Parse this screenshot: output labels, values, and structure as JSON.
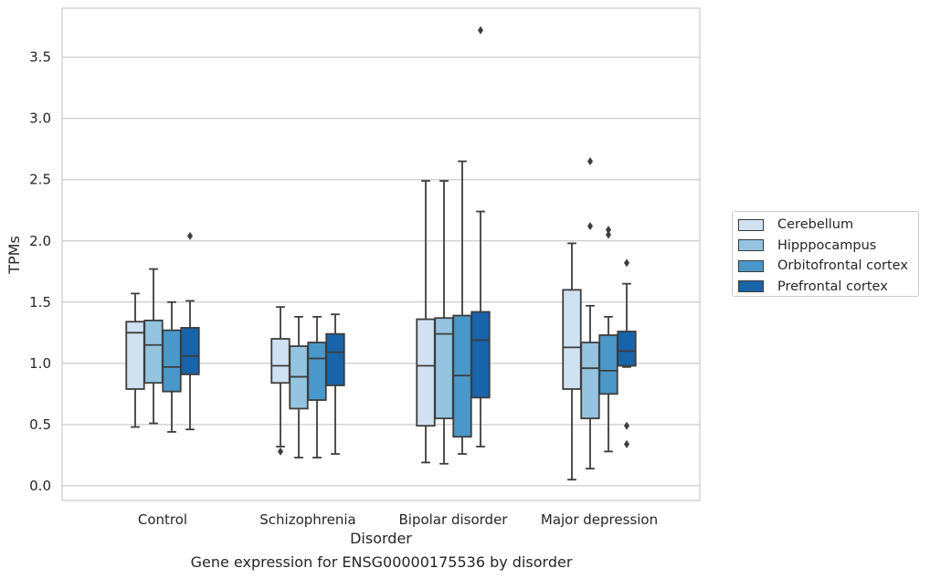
{
  "chart_data": {
    "type": "boxplot",
    "caption": "Gene expression for ENSG00000175536 by disorder",
    "xlabel": "Disorder",
    "ylabel": "TPMs",
    "ylim": [
      -0.12,
      3.9
    ],
    "yticks": [
      "0.0",
      "0.5",
      "1.0",
      "1.5",
      "2.0",
      "2.5",
      "3.0",
      "3.5"
    ],
    "grid": true,
    "legend_position": "right",
    "categories": [
      "Control",
      "Schizophrenia",
      "Bipolar disorder",
      "Major depression"
    ],
    "series": [
      {
        "name": "Cerebellum",
        "color": "#d0e1f2",
        "boxes": [
          {
            "whislo": 0.48,
            "q1": 0.79,
            "med": 1.25,
            "q3": 1.34,
            "whishi": 1.57,
            "fliers": []
          },
          {
            "whislo": 0.32,
            "q1": 0.84,
            "med": 0.98,
            "q3": 1.2,
            "whishi": 1.46,
            "fliers": [
              0.28
            ]
          },
          {
            "whislo": 0.19,
            "q1": 0.49,
            "med": 0.98,
            "q3": 1.36,
            "whishi": 2.49,
            "fliers": []
          },
          {
            "whislo": 0.05,
            "q1": 0.79,
            "med": 1.13,
            "q3": 1.6,
            "whishi": 1.98,
            "fliers": []
          }
        ]
      },
      {
        "name": "Hipppocampus",
        "color": "#94c4df",
        "boxes": [
          {
            "whislo": 0.51,
            "q1": 0.84,
            "med": 1.15,
            "q3": 1.35,
            "whishi": 1.77,
            "fliers": []
          },
          {
            "whislo": 0.23,
            "q1": 0.63,
            "med": 0.89,
            "q3": 1.14,
            "whishi": 1.38,
            "fliers": []
          },
          {
            "whislo": 0.18,
            "q1": 0.55,
            "med": 1.24,
            "q3": 1.37,
            "whishi": 2.49,
            "fliers": []
          },
          {
            "whislo": 0.14,
            "q1": 0.55,
            "med": 0.96,
            "q3": 1.17,
            "whishi": 1.47,
            "fliers": [
              2.12,
              2.65
            ]
          }
        ]
      },
      {
        "name": "Orbitofrontal cortex",
        "color": "#4a98c9",
        "boxes": [
          {
            "whislo": 0.44,
            "q1": 0.77,
            "med": 0.97,
            "q3": 1.27,
            "whishi": 1.5,
            "fliers": []
          },
          {
            "whislo": 0.23,
            "q1": 0.7,
            "med": 1.04,
            "q3": 1.17,
            "whishi": 1.38,
            "fliers": []
          },
          {
            "whislo": 0.26,
            "q1": 0.4,
            "med": 0.9,
            "q3": 1.39,
            "whishi": 2.65,
            "fliers": []
          },
          {
            "whislo": 0.28,
            "q1": 0.75,
            "med": 0.94,
            "q3": 1.23,
            "whishi": 1.38,
            "fliers": [
              2.05,
              2.09
            ]
          }
        ]
      },
      {
        "name": "Prefrontal cortex",
        "color": "#1764ab",
        "boxes": [
          {
            "whislo": 0.46,
            "q1": 0.91,
            "med": 1.06,
            "q3": 1.29,
            "whishi": 1.51,
            "fliers": [
              2.04
            ]
          },
          {
            "whislo": 0.26,
            "q1": 0.82,
            "med": 1.09,
            "q3": 1.24,
            "whishi": 1.4,
            "fliers": []
          },
          {
            "whislo": 0.32,
            "q1": 0.72,
            "med": 1.19,
            "q3": 1.42,
            "whishi": 2.24,
            "fliers": [
              3.72
            ]
          },
          {
            "whislo": 0.97,
            "q1": 0.98,
            "med": 1.1,
            "q3": 1.26,
            "whishi": 1.65,
            "fliers": [
              0.34,
              0.49,
              1.82
            ]
          }
        ]
      }
    ]
  }
}
